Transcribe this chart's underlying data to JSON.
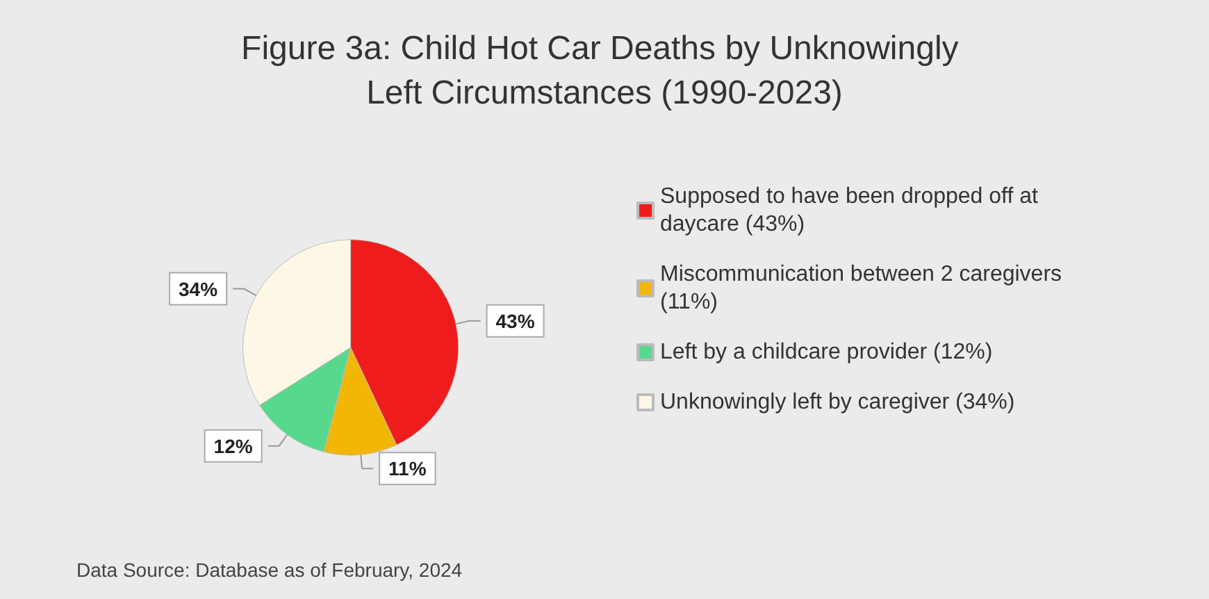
{
  "chart_data": {
    "type": "pie",
    "title": "Figure 3a: Child Hot Car Deaths by Unknowingly Left Circumstances (1990-2023)",
    "categories": [
      "Supposed to have been dropped off at daycare (43%)",
      "Miscommunication between 2 caregivers (11%)",
      "Left by a childcare provider (12%)",
      "Unknowingly left by caregiver (34%)"
    ],
    "values": [
      43,
      11,
      12,
      34
    ],
    "colors": [
      "#ee1c1c",
      "#f2b705",
      "#56d98c",
      "#fdf8e6"
    ],
    "value_labels": [
      "43%",
      "11%",
      "12%",
      "34%"
    ],
    "legend": "right",
    "annotations": [
      "Data Source: Database as of February, 2024"
    ]
  }
}
